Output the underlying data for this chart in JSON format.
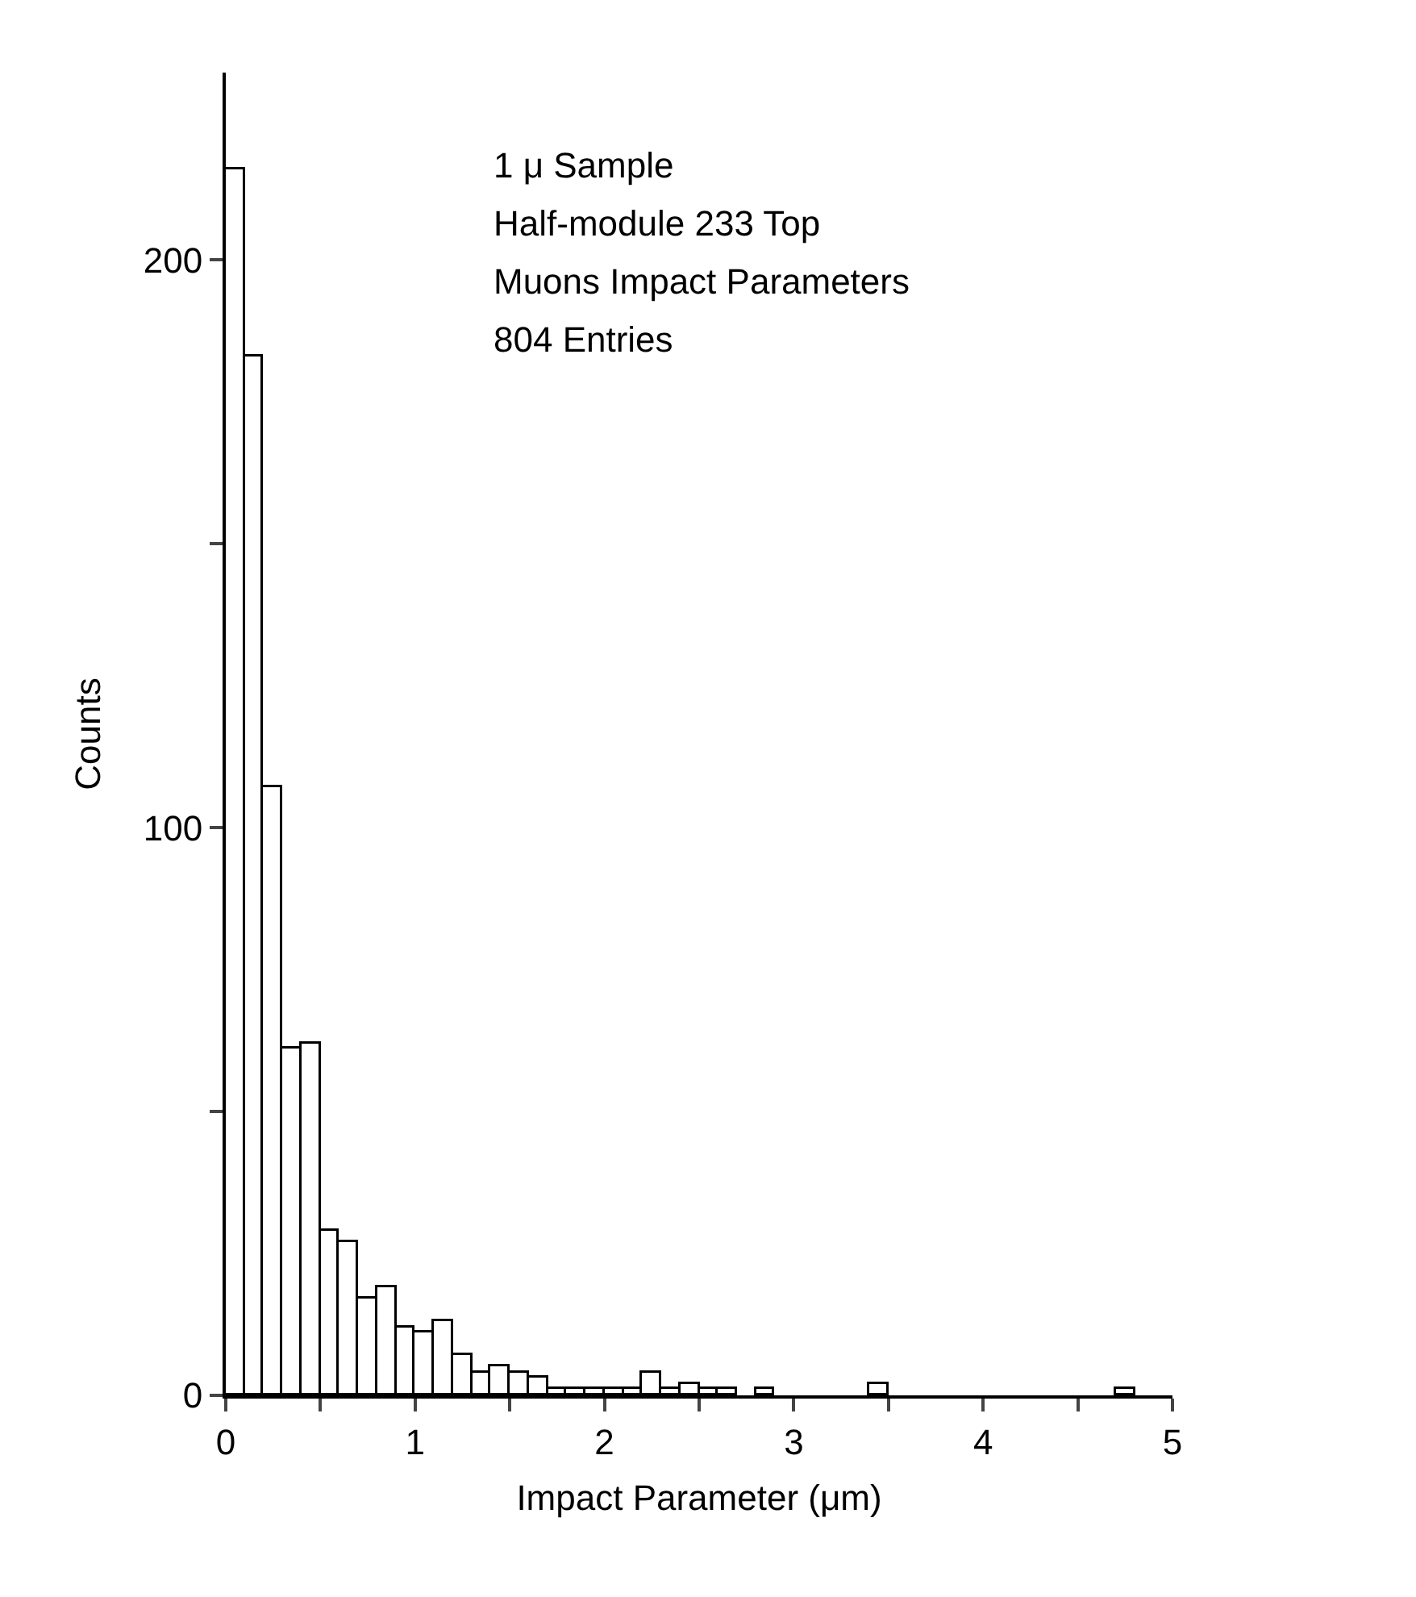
{
  "chart_data": {
    "type": "histogram",
    "xlabel": "Impact Parameter (μm)",
    "ylabel": "Counts",
    "annotations": [
      "1 μ Sample",
      "Half-module 233 Top",
      "Muons Impact Parameters",
      "804 Entries"
    ],
    "bins": [
      0,
      0.1,
      0.2,
      0.3,
      0.4,
      0.5,
      0.6,
      0.7,
      0.8,
      0.9,
      1.0,
      1.1,
      1.2,
      1.3,
      1.4,
      1.5,
      1.6,
      1.7,
      1.8,
      1.9,
      2.0,
      2.1,
      2.2,
      2.3,
      2.4,
      2.5,
      2.6,
      2.7,
      2.8,
      2.9,
      3.0,
      3.1,
      3.2,
      3.3,
      3.4,
      3.5,
      3.6,
      3.7,
      3.8,
      3.9,
      4.0,
      4.1,
      4.2,
      4.3,
      4.4,
      4.5,
      4.6,
      4.7,
      4.8,
      4.9,
      5.0
    ],
    "values": [
      216,
      183,
      107,
      61,
      62,
      29,
      27,
      17,
      19,
      12,
      11,
      13,
      7,
      4,
      5,
      4,
      3,
      1,
      1,
      1,
      1,
      1,
      4,
      1,
      2,
      1,
      1,
      0,
      1,
      0,
      0,
      0,
      0,
      0,
      2,
      0,
      0,
      0,
      0,
      0,
      0,
      0,
      0,
      0,
      0,
      0,
      0,
      1,
      0,
      0
    ],
    "color": "#ffffff",
    "xlim": [
      0,
      5
    ],
    "xticks": [
      0,
      {
        "value": 0.5,
        "label": null
      },
      1,
      {
        "value": 1.5,
        "label": null
      },
      2,
      {
        "value": 2.5,
        "label": null
      },
      3,
      {
        "value": 3.5,
        "label": null
      },
      4,
      {
        "value": 4.5,
        "label": null
      },
      5
    ],
    "ylim": [
      0,
      233
    ],
    "yticks": [
      0,
      {
        "value": 50,
        "label": null
      },
      100,
      {
        "value": 150,
        "label": null
      },
      200
    ]
  }
}
